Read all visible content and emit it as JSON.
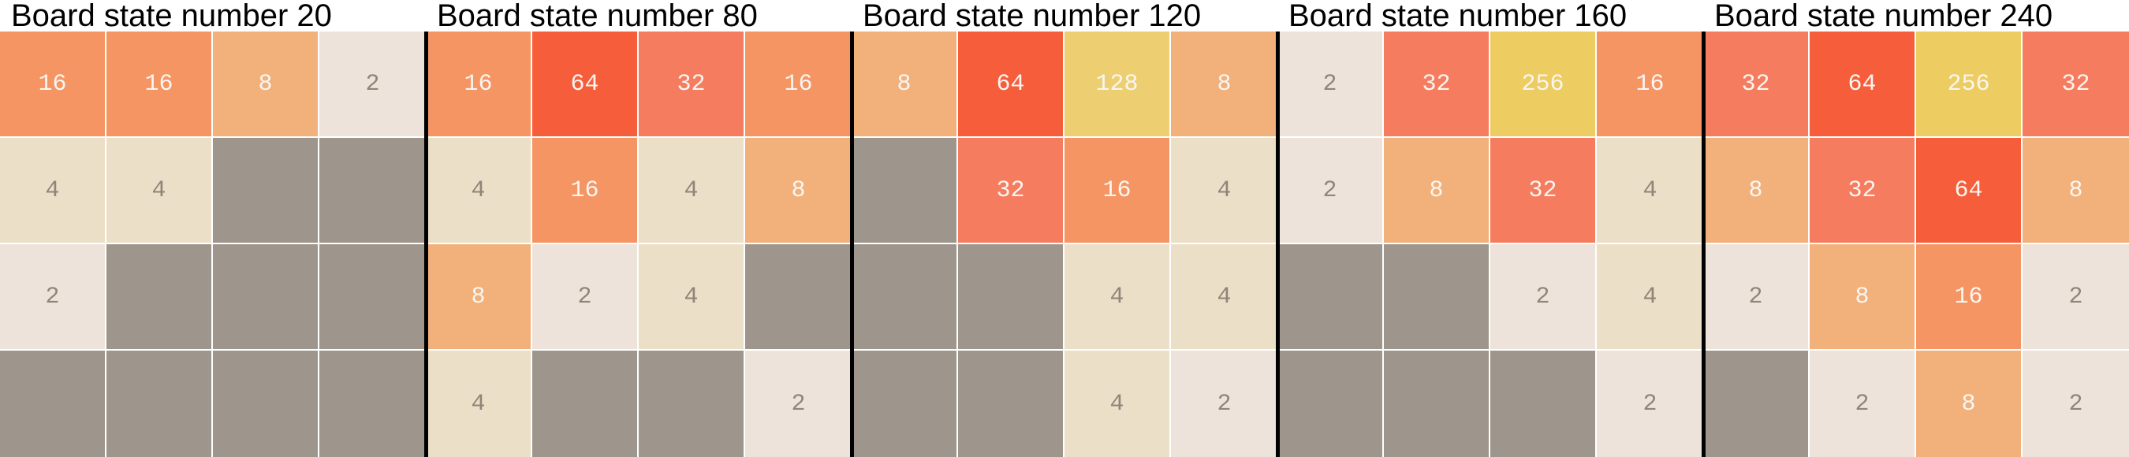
{
  "tile_colors": {
    "0": "#9e968c",
    "2": "#ede3da",
    "4": "#ecdfc8",
    "8": "#f2b07a",
    "16": "#f59563",
    "32": "#f67c5f",
    "64": "#f65e3b",
    "128": "#edcf72",
    "256": "#edcc61"
  },
  "text_colors": {
    "light": "#f9f6f2",
    "dark": "#8f8578"
  },
  "panels": [
    {
      "title": "Board state number 20",
      "tiles": [
        "16",
        "16",
        "8",
        "2",
        "4",
        "4",
        "",
        "",
        "2",
        "",
        "",
        "",
        "",
        "",
        "",
        ""
      ]
    },
    {
      "title": "Board state number 80",
      "tiles": [
        "16",
        "64",
        "32",
        "16",
        "4",
        "16",
        "4",
        "8",
        "8",
        "2",
        "4",
        "",
        "4",
        "",
        "",
        "2"
      ]
    },
    {
      "title": "Board state number 120",
      "tiles": [
        "8",
        "64",
        "128",
        "8",
        "",
        "32",
        "16",
        "4",
        "",
        "",
        "4",
        "4",
        "",
        "",
        "4",
        "2"
      ]
    },
    {
      "title": "Board state number 160",
      "tiles": [
        "2",
        "32",
        "256",
        "16",
        "2",
        "8",
        "32",
        "4",
        "",
        "",
        "2",
        "4",
        "",
        "",
        "",
        "2"
      ]
    },
    {
      "title": "Board state number 240",
      "tiles": [
        "32",
        "64",
        "256",
        "32",
        "8",
        "32",
        "64",
        "8",
        "2",
        "8",
        "16",
        "2",
        "",
        "2",
        "8",
        "2"
      ]
    }
  ]
}
